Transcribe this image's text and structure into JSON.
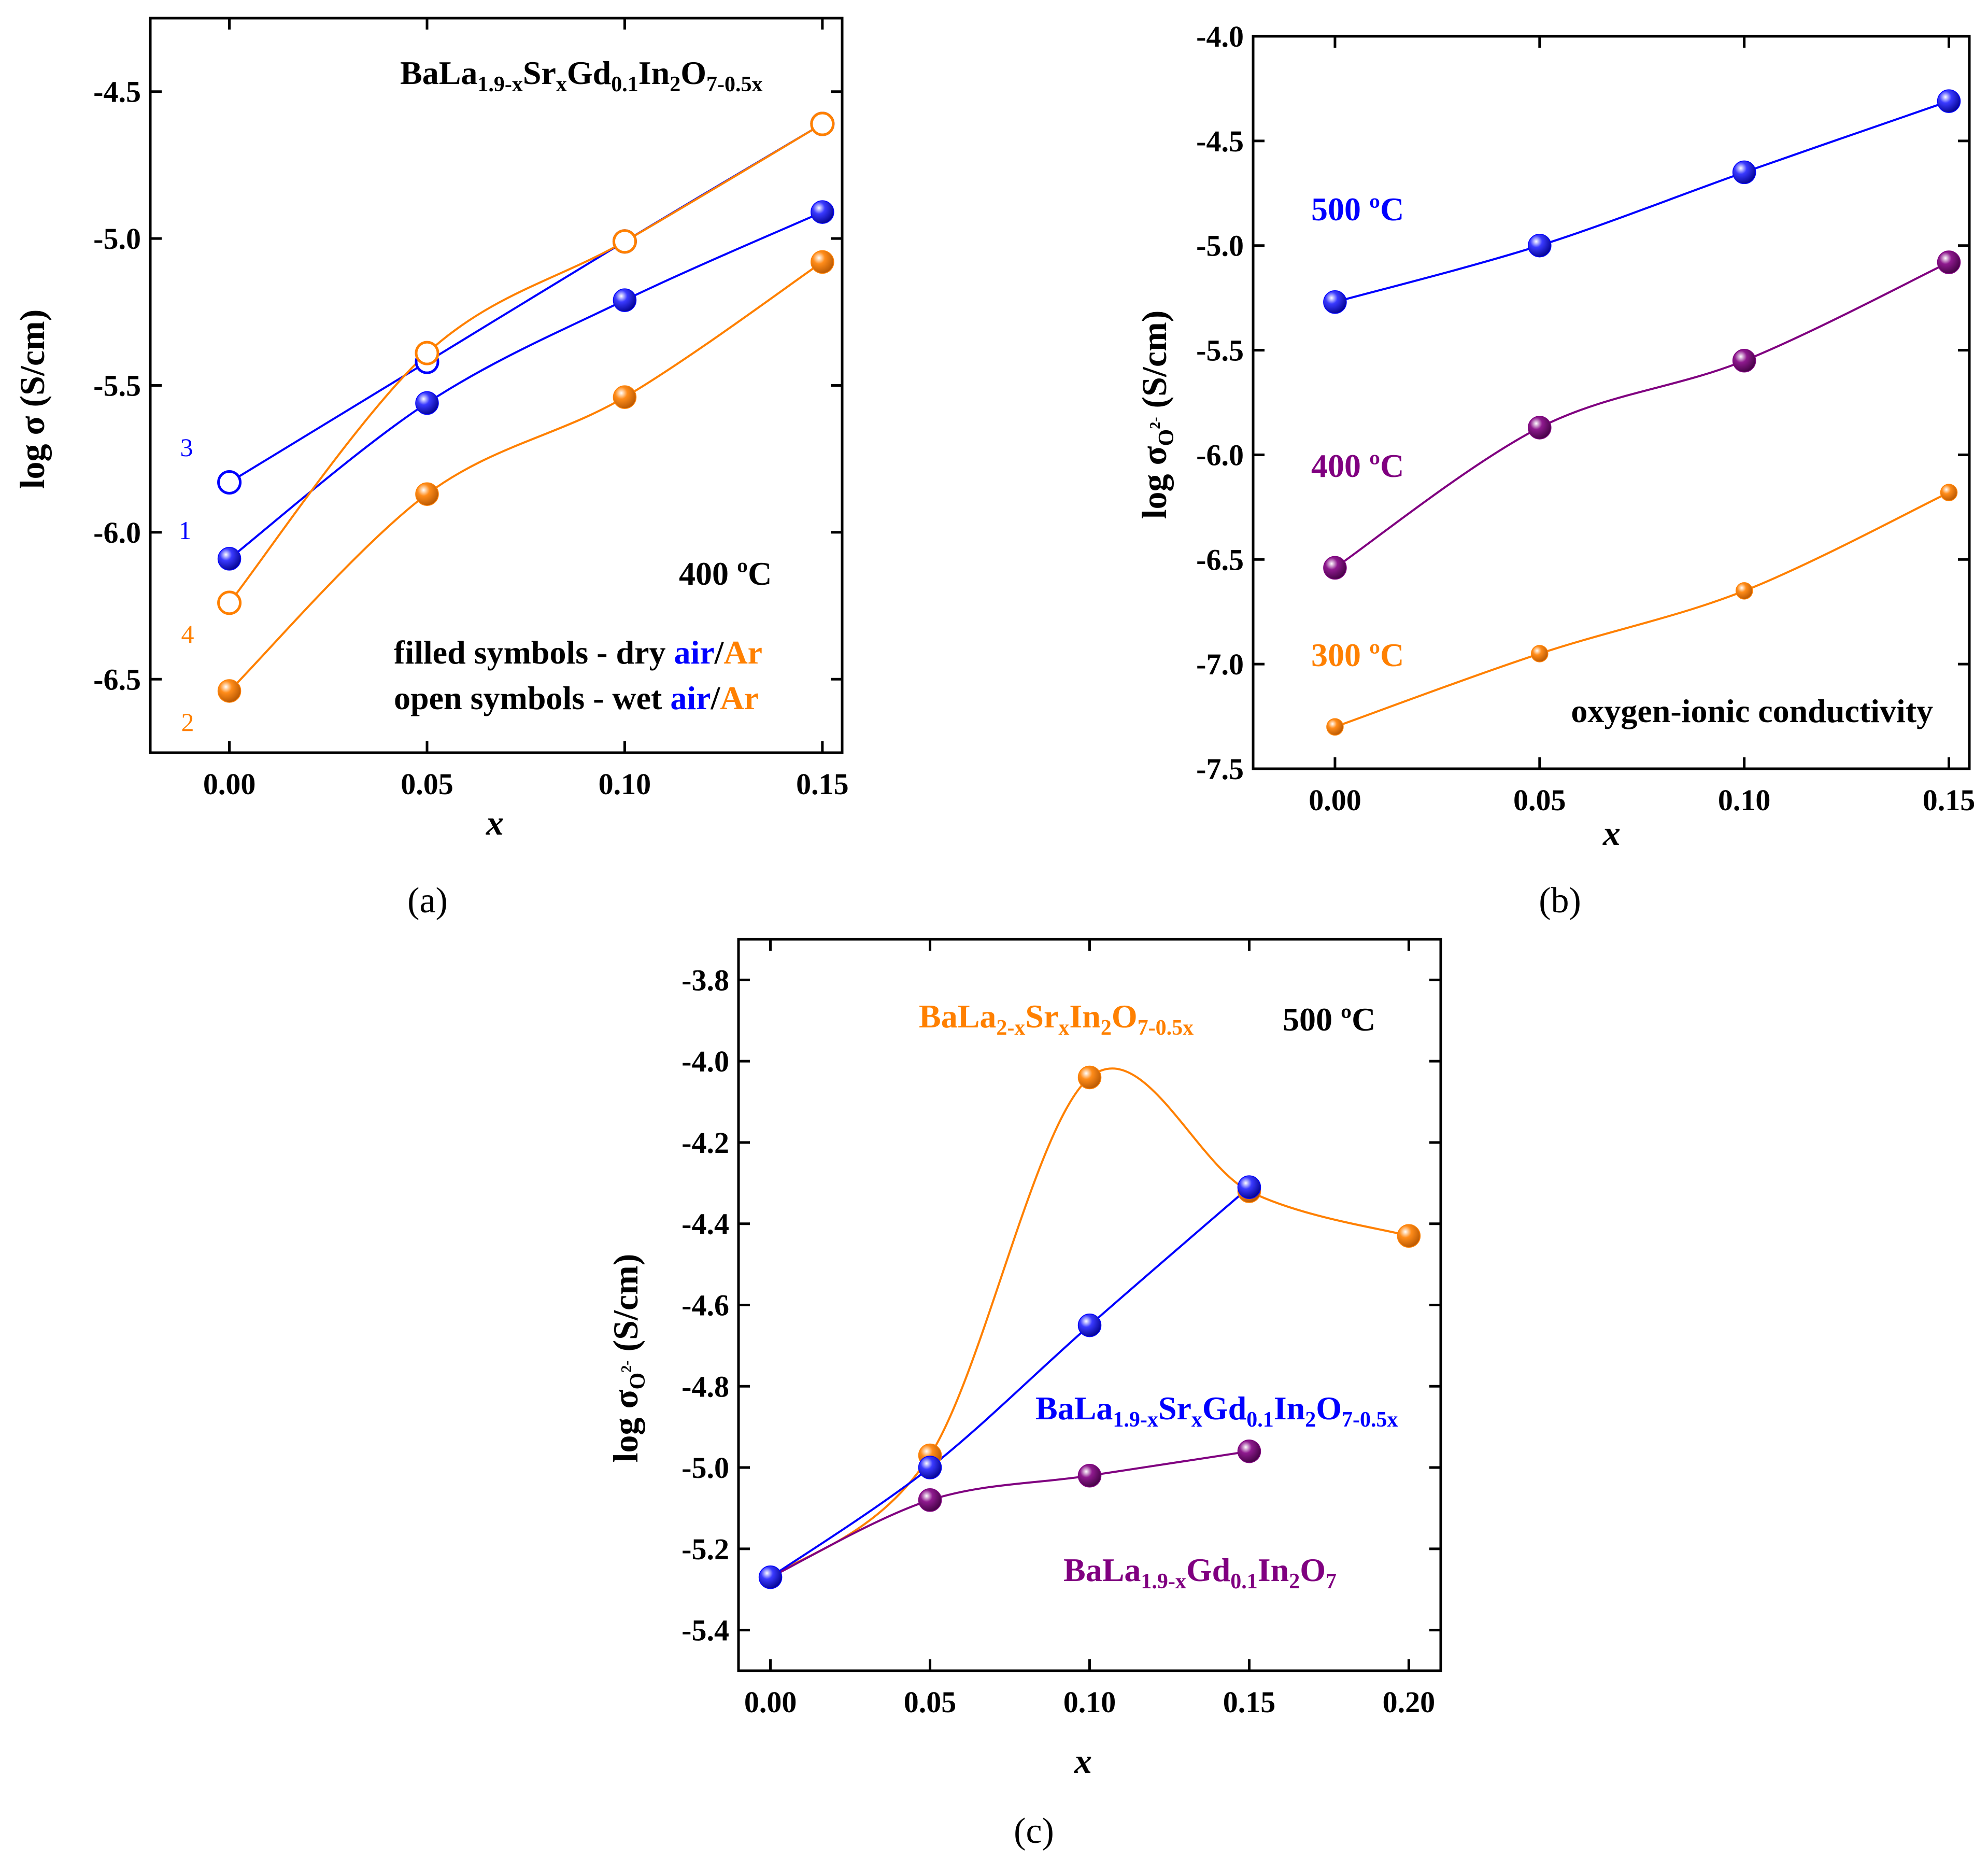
{
  "colors": {
    "blue": "#0000ff",
    "orange": "#ff8000",
    "purple": "#800080",
    "black": "#000000"
  },
  "panel_labels": [
    "(a)",
    "(b)",
    "(c)"
  ],
  "panels": {
    "a": {
      "ylabel": "log σ (S/cm)",
      "xlabel": "x",
      "formula": "BaLa1.9-xSrxGd0.1In2O7-0.5x",
      "temperature": "400 ºC",
      "legend_filled": [
        "filled symbols - dry ",
        "air",
        "/",
        "Ar"
      ],
      "legend_open": [
        "open symbols - wet ",
        "air",
        "/",
        "Ar"
      ],
      "curve_numbers": [
        "1",
        "2",
        "3",
        "4"
      ]
    },
    "b": {
      "ylabel": "log σO2- (S/cm)",
      "xlabel": "x",
      "temp_labels": [
        "500 ºC",
        "400 ºC",
        "300 ºC"
      ],
      "note": "oxygen-ionic conductivity"
    },
    "c": {
      "ylabel": "log σO2- (S/cm)",
      "xlabel": "x",
      "temperature": "500 ºC",
      "formulas": [
        "BaLa2-xSrxIn2O7-0.5x",
        "BaLa1.9-xSrxGd0.1In2O7-0.5x",
        "BaLa1.9-xGd0.1In2O7"
      ]
    }
  },
  "chart_data": [
    {
      "id": "a",
      "type": "scatter",
      "title": "BaLa1.9-xSrxGd0.1In2O7-0.5x, 400 ºC",
      "xlabel": "x",
      "ylabel": "log σ (S/cm)",
      "xlim": [
        -0.02,
        0.155
      ],
      "ylim": [
        -6.75,
        -4.25
      ],
      "xticks": [
        0.0,
        0.05,
        0.1,
        0.15
      ],
      "xtick_labels": [
        "0.00",
        "0.05",
        "0.10",
        "0.15"
      ],
      "yticks": [
        -6.5,
        -6.0,
        -5.5,
        -5.0,
        -4.5
      ],
      "ytick_labels": [
        "-6.5",
        "-6.0",
        "-5.5",
        "-5.0",
        "-4.5"
      ],
      "series": [
        {
          "name": "1 - dry air",
          "marker": "filled",
          "color": "blue",
          "x": [
            0.0,
            0.05,
            0.1,
            0.15
          ],
          "y": [
            -6.09,
            -5.56,
            -5.21,
            -4.91
          ]
        },
        {
          "name": "2 - dry Ar",
          "marker": "filled",
          "color": "orange",
          "x": [
            0.0,
            0.05,
            0.1,
            0.15
          ],
          "y": [
            -6.54,
            -5.87,
            -5.54,
            -5.08
          ]
        },
        {
          "name": "3 - wet air",
          "marker": "open",
          "color": "blue",
          "x": [
            0.0,
            0.05,
            0.1,
            0.15
          ],
          "y": [
            -5.83,
            -5.42,
            -5.01,
            -4.61
          ]
        },
        {
          "name": "4 - wet Ar",
          "marker": "open",
          "color": "orange",
          "x": [
            0.0,
            0.05,
            0.1,
            0.15
          ],
          "y": [
            -6.24,
            -5.39,
            -5.01,
            -4.61
          ]
        }
      ]
    },
    {
      "id": "b",
      "type": "scatter",
      "title": "oxygen-ionic conductivity",
      "xlabel": "x",
      "ylabel": "log σO2- (S/cm)",
      "xlim": [
        -0.02,
        0.155
      ],
      "ylim": [
        -7.5,
        -4.0
      ],
      "xticks": [
        0.0,
        0.05,
        0.1,
        0.15
      ],
      "xtick_labels": [
        "0.00",
        "0.05",
        "0.10",
        "0.15"
      ],
      "yticks": [
        -7.5,
        -7.0,
        -6.5,
        -6.0,
        -5.5,
        -5.0,
        -4.5,
        -4.0
      ],
      "ytick_labels": [
        "-7.5",
        "-7.0",
        "-6.5",
        "-6.0",
        "-5.5",
        "-5.0",
        "-4.5",
        "-4.0"
      ],
      "series": [
        {
          "name": "500 ºC",
          "color": "blue",
          "x": [
            0.0,
            0.05,
            0.1,
            0.15
          ],
          "y": [
            -5.27,
            -5.0,
            -4.65,
            -4.31
          ]
        },
        {
          "name": "400 ºC",
          "color": "purple",
          "x": [
            0.0,
            0.05,
            0.1,
            0.15
          ],
          "y": [
            -6.54,
            -5.87,
            -5.55,
            -5.08
          ]
        },
        {
          "name": "300 ºC",
          "color": "orange",
          "x": [
            0.0,
            0.05,
            0.1,
            0.15
          ],
          "y": [
            -7.3,
            -6.95,
            -6.65,
            -6.18
          ]
        }
      ]
    },
    {
      "id": "c",
      "type": "scatter",
      "title": "500 ºC",
      "xlabel": "x",
      "ylabel": "log σO2- (S/cm)",
      "xlim": [
        -0.01,
        0.21
      ],
      "ylim": [
        -5.5,
        -3.7
      ],
      "xticks": [
        0.0,
        0.05,
        0.1,
        0.15,
        0.2
      ],
      "xtick_labels": [
        "0.00",
        "0.05",
        "0.10",
        "0.15",
        "0.20"
      ],
      "yticks": [
        -5.4,
        -5.2,
        -5.0,
        -4.8,
        -4.6,
        -4.4,
        -4.2,
        -4.0,
        -3.8
      ],
      "ytick_labels": [
        "-5.4",
        "-5.2",
        "-5.0",
        "-4.8",
        "-4.6",
        "-4.4",
        "-4.2",
        "-4.0",
        "-3.8"
      ],
      "series": [
        {
          "name": "BaLa2-xSrxIn2O7-0.5x",
          "color": "orange",
          "x": [
            0.05,
            0.1,
            0.15,
            0.2
          ],
          "y": [
            -4.97,
            -4.04,
            -4.32,
            -4.43
          ]
        },
        {
          "name": "BaLa1.9-xSrxGd0.1In2O7-0.5x",
          "color": "blue",
          "x": [
            0.0,
            0.05,
            0.1,
            0.15
          ],
          "y": [
            -5.27,
            -5.0,
            -4.65,
            -4.31
          ]
        },
        {
          "name": "BaLa1.9-xGd0.1In2O7",
          "color": "purple",
          "x": [
            0.05,
            0.1,
            0.15
          ],
          "y": [
            -5.08,
            -5.02,
            -4.96
          ]
        }
      ]
    }
  ]
}
